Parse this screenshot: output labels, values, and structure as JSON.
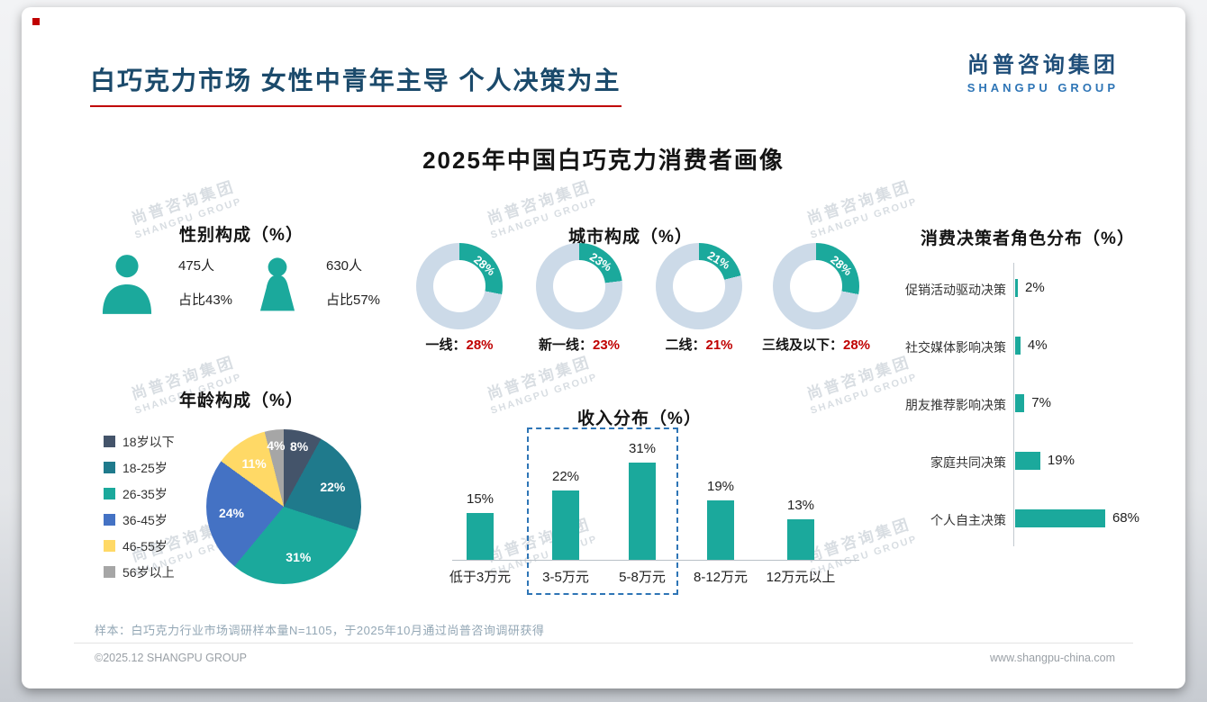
{
  "page": {
    "title": "白巧克力市场 女性中青年主导 个人决策为主",
    "subtitle": "2025年中国白巧克力消费者画像",
    "logo": {
      "cn": "尚普咨询集团",
      "en": "SHANGPU GROUP"
    },
    "watermark": {
      "cn": "尚普咨询集团",
      "en": "SHANGPU GROUP"
    },
    "footer": {
      "sample_note": "样本：白巧克力行业市场调研样本量N=1105，于2025年10月通过尚普咨询调研获得",
      "copyright": "©2025.12 SHANGPU GROUP",
      "website": "www.shangpu-china.com"
    }
  },
  "colors": {
    "teal": "#1ba99c",
    "donut_rest": "#ccdae8",
    "accent_red": "#c00000",
    "navy": "#1b4a6b",
    "highlight_border": "#2e75b6"
  },
  "chart_data": [
    {
      "type": "pictogram",
      "title": "性别构成（%）",
      "items": [
        {
          "gender": "男性",
          "count": "475人",
          "share": "占比43%"
        },
        {
          "gender": "女性",
          "count": "630人",
          "share": "占比57%"
        }
      ]
    },
    {
      "type": "pie",
      "title": "年龄构成（%）",
      "categories": [
        "18岁以下",
        "18-25岁",
        "26-35岁",
        "36-45岁",
        "46-55岁",
        "56岁以上"
      ],
      "values": [
        8,
        22,
        31,
        24,
        11,
        4
      ],
      "colors": [
        "#44546a",
        "#1f7a8c",
        "#1ba99c",
        "#4472c4",
        "#ffd966",
        "#a6a6a6"
      ],
      "label_unit": "%"
    },
    {
      "type": "donut",
      "title": "城市构成（%）",
      "items": [
        {
          "label": "一线",
          "value": 28
        },
        {
          "label": "新一线",
          "value": 23
        },
        {
          "label": "二线",
          "value": 21
        },
        {
          "label": "三线及以下",
          "value": 28
        }
      ]
    },
    {
      "type": "bar",
      "title": "收入分布（%）",
      "categories": [
        "低于3万元",
        "3-5万元",
        "5-8万元",
        "8-12万元",
        "12万元以上"
      ],
      "values": [
        15,
        22,
        31,
        19,
        13
      ],
      "highlight_categories": [
        "3-5万元",
        "5-8万元"
      ],
      "ylim": [
        0,
        35
      ]
    },
    {
      "type": "hbar",
      "title": "消费决策者角色分布（%）",
      "categories": [
        "促销活动驱动决策",
        "社交媒体影响决策",
        "朋友推荐影响决策",
        "家庭共同决策",
        "个人自主决策"
      ],
      "values": [
        2,
        4,
        7,
        19,
        68
      ],
      "xlim": [
        0,
        80
      ]
    }
  ]
}
